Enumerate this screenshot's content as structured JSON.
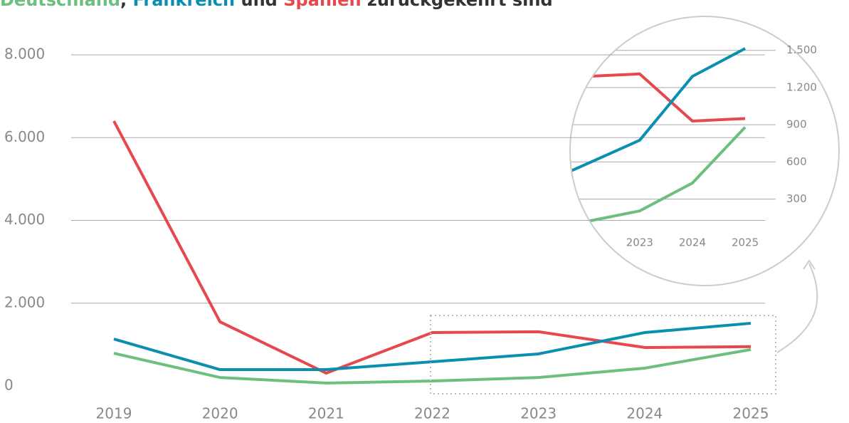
{
  "chart_data": {
    "type": "line",
    "title_parts": [
      "Deutschland",
      ", ",
      "Frankreich",
      " und ",
      "Spanien",
      " zurückgekehrt sind"
    ],
    "x": [
      2019,
      2020,
      2021,
      2022,
      2023,
      2024,
      2025
    ],
    "xlim": [
      2019,
      2025
    ],
    "xticks": [
      2019,
      2020,
      2021,
      2022,
      2023,
      2024,
      2025
    ],
    "ylim": [
      0,
      8000
    ],
    "yticks": [
      0,
      {
        "value": 2000,
        "label": "2.000"
      },
      {
        "value": 4000,
        "label": "4.000"
      },
      {
        "value": 6000,
        "label": "6.000"
      },
      {
        "value": 8000,
        "label": "8.000"
      }
    ],
    "grid": true,
    "series": [
      {
        "name": "Spanien",
        "color": "#e5484d",
        "values": [
          6400,
          1550,
          310,
          1290,
          1310,
          930,
          950
        ]
      },
      {
        "name": "Frankreich",
        "color": "#0a8fb0",
        "values": [
          1135,
          395,
          395,
          585,
          775,
          1290,
          1515
        ]
      },
      {
        "name": "Deutschland",
        "color": "#6dbf7e",
        "values": [
          790,
          205,
          70,
          120,
          205,
          430,
          880
        ]
      }
    ],
    "inset": {
      "xlim": [
        2021.68,
        2026.78
      ],
      "xticks": [
        2023,
        2024,
        2025
      ],
      "ylim": [
        -397,
        1774
      ],
      "yticks": [
        300,
        600,
        900,
        {
          "value": 1200,
          "label": "1.200"
        },
        {
          "value": 1500,
          "label": "1.500"
        }
      ]
    }
  }
}
